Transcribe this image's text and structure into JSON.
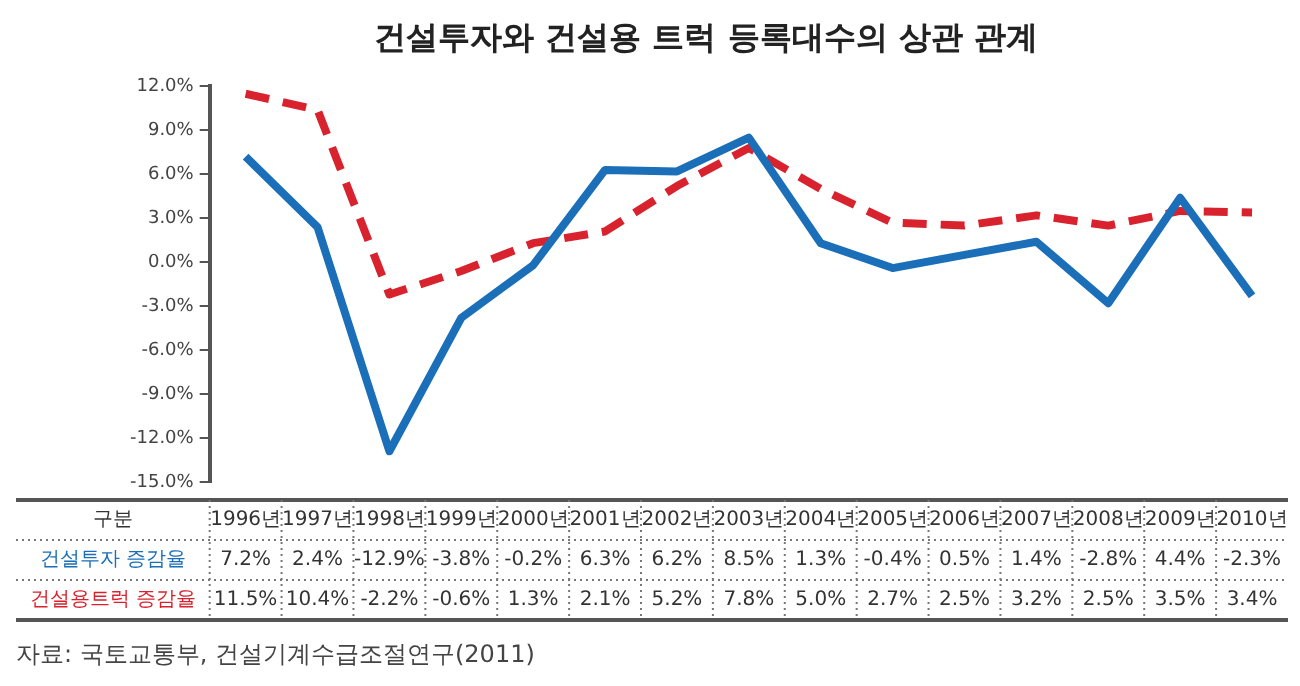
{
  "chart_data": {
    "type": "line",
    "title": "건설투자와 건설용 트럭 등록대수의 상관 관계",
    "xlabel": "구분",
    "categories": [
      "1996년",
      "1997년",
      "1998년",
      "1999년",
      "2000년",
      "2001년",
      "2002년",
      "2003년",
      "2004년",
      "2005년",
      "2006년",
      "2007년",
      "2008년",
      "2009년",
      "2010년"
    ],
    "series": [
      {
        "name": "건설투자 증감율",
        "color": "#1b6fb8",
        "line_style": "solid",
        "values": [
          7.2,
          2.4,
          -12.9,
          -3.8,
          -0.2,
          6.3,
          6.2,
          8.5,
          1.3,
          -0.4,
          0.5,
          1.4,
          -2.8,
          4.4,
          -2.3
        ],
        "value_labels": [
          "7.2%",
          "2.4%",
          "-12.9%",
          "-3.8%",
          "-0.2%",
          "6.3%",
          "6.2%",
          "8.5%",
          "1.3%",
          "-0.4%",
          "0.5%",
          "1.4%",
          "-2.8%",
          "4.4%",
          "-2.3%"
        ]
      },
      {
        "name": "건설용트럭 증감율",
        "color": "#d8232f",
        "line_style": "dashed",
        "values": [
          11.5,
          10.4,
          -2.2,
          -0.6,
          1.3,
          2.1,
          5.2,
          7.8,
          5.0,
          2.7,
          2.5,
          3.2,
          2.5,
          3.5,
          3.4
        ],
        "value_labels": [
          "11.5%",
          "10.4%",
          "-2.2%",
          "-0.6%",
          "1.3%",
          "2.1%",
          "5.2%",
          "7.8%",
          "5.0%",
          "2.7%",
          "2.5%",
          "3.2%",
          "2.5%",
          "3.5%",
          "3.4%"
        ]
      }
    ],
    "ylim": [
      -15,
      12
    ],
    "yticks": [
      {
        "value": 12,
        "label": "12.0%"
      },
      {
        "value": 9,
        "label": "9.0%"
      },
      {
        "value": 6,
        "label": "6.0%"
      },
      {
        "value": 3,
        "label": "3.0%"
      },
      {
        "value": 0,
        "label": "0.0%"
      },
      {
        "value": -3,
        "label": "-3.0%"
      },
      {
        "value": -6,
        "label": "-6.0%"
      },
      {
        "value": -9,
        "label": "-9.0%"
      },
      {
        "value": -12,
        "label": "-12.0%"
      },
      {
        "value": -15,
        "label": "-15.0%"
      }
    ],
    "grid": false,
    "legend": false,
    "marker": "none",
    "annotations": [
      "자료: 국토교통부, 건설기계수급조절연구(2011)"
    ]
  }
}
